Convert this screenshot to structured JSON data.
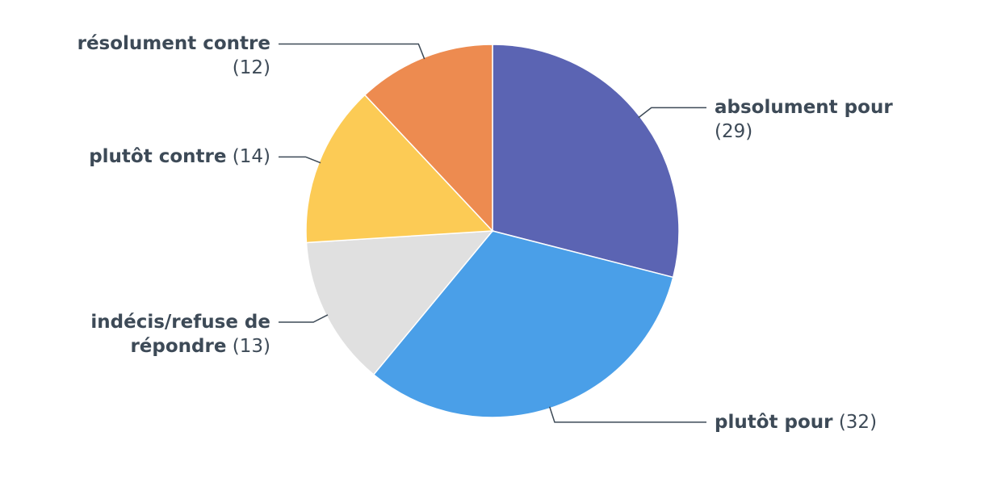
{
  "chart_data": {
    "type": "pie",
    "categories": [
      "absolument pour",
      "plutôt pour",
      "indécis/refuse de répondre",
      "plutôt contre",
      "résolument contre"
    ],
    "values": [
      29,
      32,
      13,
      14,
      12
    ],
    "value_labels": [
      "(29)",
      "(32)",
      "(13)",
      "(14)",
      "(12)"
    ],
    "colors": [
      "#5b64b3",
      "#4a9fe8",
      "#e0e0e0",
      "#fccb55",
      "#ed8b50"
    ]
  }
}
